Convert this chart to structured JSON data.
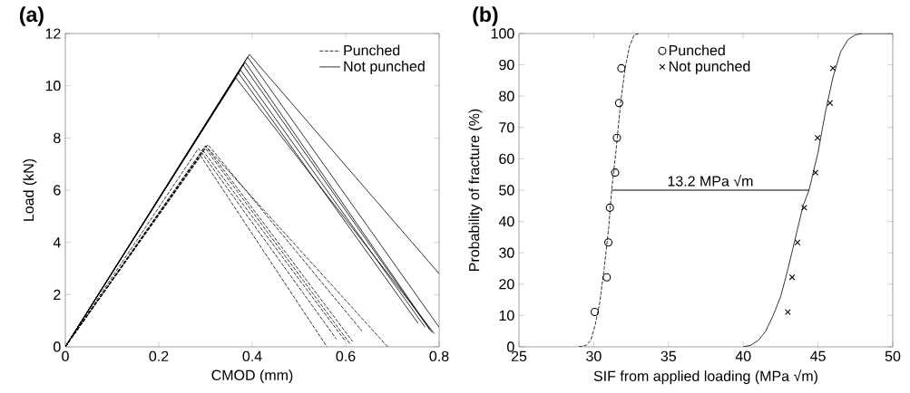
{
  "chart_data": [
    {
      "type": "line",
      "title": "(a)",
      "xlabel": "CMOD (mm)",
      "ylabel": "Load (kN)",
      "xlim": [
        0,
        0.8
      ],
      "ylim": [
        0,
        12
      ],
      "xticks": [
        0,
        0.2,
        0.4,
        0.6,
        0.8
      ],
      "yticks": [
        0,
        2,
        4,
        6,
        8,
        10,
        12
      ],
      "legend": "top right",
      "series": [
        {
          "name": "Punched",
          "color": "#000000",
          "line_style": "dashed",
          "x": [
            0,
            0.305,
            0.635
          ],
          "values": [
            0,
            7.75,
            0.6
          ]
        },
        {
          "color": "#000000",
          "line_style": "dashed",
          "x": [
            0,
            0.3,
            0.615
          ],
          "values": [
            0,
            7.7,
            0.2
          ]
        },
        {
          "color": "#000000",
          "line_style": "dashed",
          "x": [
            0,
            0.3,
            0.61
          ],
          "values": [
            0,
            7.6,
            0.1
          ]
        },
        {
          "color": "#000000",
          "line_style": "dashed",
          "x": [
            0,
            0.295,
            0.6
          ],
          "values": [
            0,
            7.5,
            0.2
          ]
        },
        {
          "color": "#000000",
          "line_style": "dashed",
          "x": [
            0,
            0.285,
            0.58
          ],
          "values": [
            0,
            7.6,
            0.3
          ]
        },
        {
          "color": "#000000",
          "line_style": "dashed",
          "x": [
            0,
            0.29,
            0.56
          ],
          "values": [
            0,
            7.3,
            0.0
          ]
        },
        {
          "color": "#000000",
          "line_style": "dashed",
          "x": [
            0,
            0.3,
            0.69
          ],
          "values": [
            0,
            7.7,
            0.0
          ]
        },
        {
          "name": "Not punched",
          "color": "#000000",
          "line_style": "solid",
          "x": [
            0,
            0.394,
            0.8
          ],
          "values": [
            0,
            11.2,
            2.8
          ]
        },
        {
          "color": "#000000",
          "line_style": "solid",
          "x": [
            0,
            0.39,
            0.8
          ],
          "values": [
            0,
            11.1,
            0.75
          ]
        },
        {
          "color": "#000000",
          "line_style": "solid",
          "x": [
            0,
            0.385,
            0.785
          ],
          "values": [
            0,
            10.9,
            0.55
          ]
        },
        {
          "color": "#000000",
          "line_style": "solid",
          "x": [
            0,
            0.38,
            0.78
          ],
          "values": [
            0,
            10.8,
            0.65
          ]
        },
        {
          "color": "#000000",
          "line_style": "solid",
          "x": [
            0,
            0.375,
            0.77
          ],
          "values": [
            0,
            10.6,
            0.75
          ]
        },
        {
          "color": "#000000",
          "line_style": "solid",
          "x": [
            0,
            0.37,
            0.755
          ],
          "values": [
            0,
            10.5,
            0.9
          ]
        },
        {
          "color": "#000000",
          "line_style": "solid",
          "x": [
            0,
            0.365,
            0.79
          ],
          "values": [
            0,
            10.3,
            0.5
          ]
        }
      ]
    },
    {
      "type": "scatter",
      "title": "(b)",
      "xlabel": "SIF from applied loading (MPa √m)",
      "ylabel": "Probability of fracture (%)",
      "xlim": [
        25,
        50
      ],
      "ylim": [
        0,
        100
      ],
      "xticks": [
        25,
        30,
        35,
        40,
        45,
        50
      ],
      "yticks": [
        0,
        10,
        20,
        30,
        40,
        50,
        60,
        70,
        80,
        90,
        100
      ],
      "legend": "top",
      "annotations": [
        {
          "text": "13.2 MPa √m",
          "x": 37.8,
          "y": 50
        }
      ],
      "series": [
        {
          "name": "Punched",
          "color": "#000000",
          "marker": "circle",
          "x": [
            30.07,
            30.87,
            30.98,
            31.08,
            31.43,
            31.55,
            31.7,
            31.85
          ],
          "values": [
            11.1,
            22.2,
            33.3,
            44.4,
            55.6,
            66.7,
            77.8,
            88.9
          ]
        },
        {
          "name": "Not punched",
          "color": "#000000",
          "marker": "cross",
          "x": [
            42.98,
            43.27,
            43.63,
            44.08,
            44.83,
            44.97,
            45.8,
            46.0
          ],
          "values": [
            11.1,
            22.2,
            33.3,
            44.4,
            55.6,
            66.7,
            77.8,
            88.9
          ]
        },
        {
          "type": "line",
          "color": "#000000",
          "line_style": "dashed",
          "marker": "none",
          "x": [
            29.0,
            29.5,
            29.8,
            30.1,
            30.4,
            30.7,
            31.0,
            31.2,
            31.5,
            31.8,
            32.1,
            32.4,
            32.7,
            33.0
          ],
          "values": [
            0,
            0.5,
            2,
            7,
            14,
            25,
            38,
            50,
            63,
            78,
            89,
            96,
            99.5,
            100
          ]
        },
        {
          "type": "line",
          "color": "#000000",
          "line_style": "solid",
          "marker": "none",
          "x": [
            40,
            40.5,
            41,
            41.5,
            42,
            42.5,
            43,
            43.5,
            44,
            44.4,
            45,
            45.5,
            46,
            46.5,
            47,
            47.5,
            48,
            50
          ],
          "values": [
            0,
            0.5,
            2,
            5,
            10,
            16,
            25,
            35,
            45,
            50,
            62,
            75,
            86,
            94,
            98,
            99.6,
            100,
            100
          ]
        },
        {
          "type": "line",
          "color": "#000000",
          "line_style": "solid",
          "marker": "none",
          "x": [
            31.2,
            44.4
          ],
          "values": [
            50,
            50
          ]
        }
      ]
    }
  ]
}
